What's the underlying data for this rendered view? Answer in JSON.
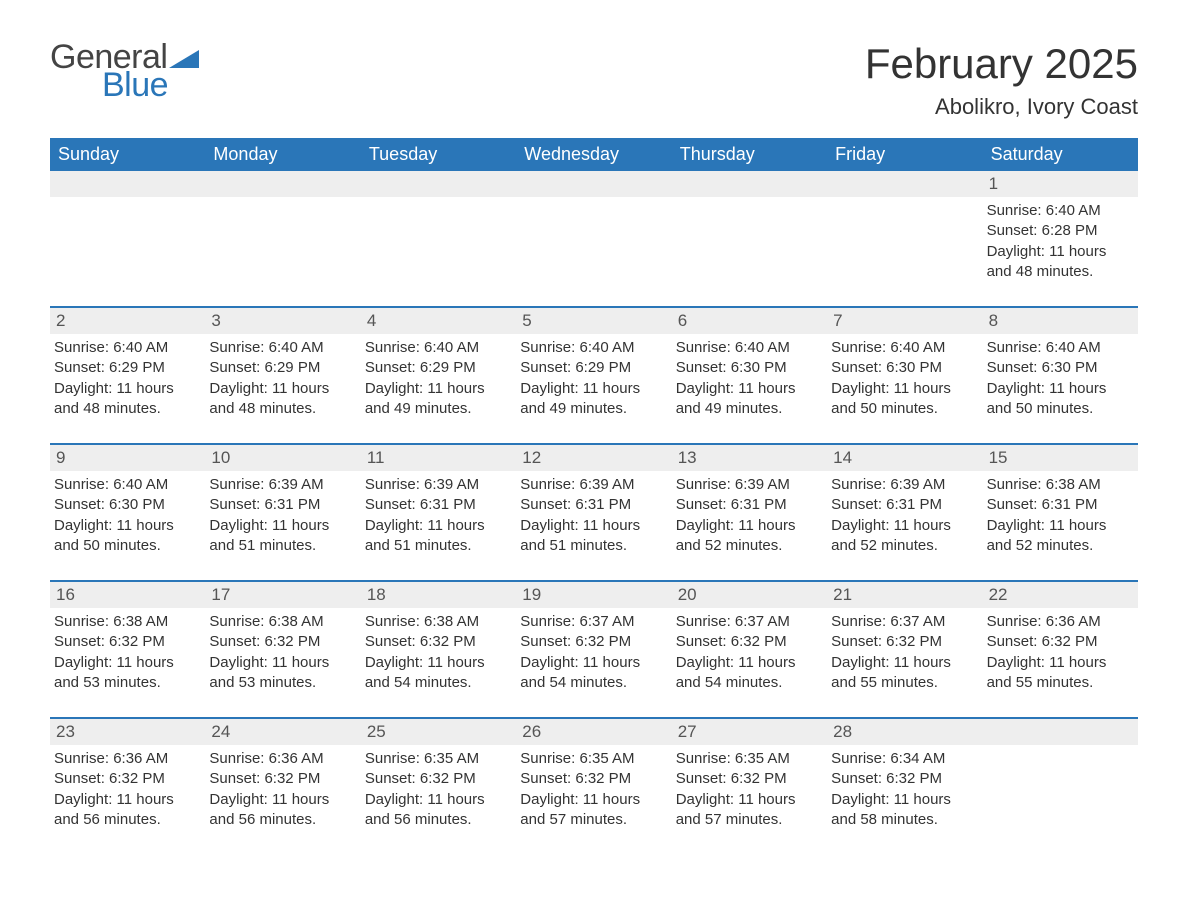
{
  "brand": {
    "word1": "General",
    "word2": "Blue",
    "accent_color": "#2a76b8"
  },
  "title": "February 2025",
  "location": "Abolikro, Ivory Coast",
  "weekdays": [
    "Sunday",
    "Monday",
    "Tuesday",
    "Wednesday",
    "Thursday",
    "Friday",
    "Saturday"
  ],
  "colors": {
    "header_bg": "#2a76b8",
    "header_text": "#ffffff",
    "body_text": "#333333",
    "daynum_bg": "#eeeeee",
    "row_border": "#2a76b8",
    "page_bg": "#ffffff"
  },
  "typography": {
    "title_fontsize": 42,
    "location_fontsize": 22,
    "weekday_fontsize": 18,
    "daynum_fontsize": 17,
    "body_fontsize": 15,
    "font_family": "Arial"
  },
  "layout": {
    "columns": 7,
    "rows": 5,
    "start_weekday_index": 6
  },
  "days": [
    {
      "n": 1,
      "sunrise": "6:40 AM",
      "sunset": "6:28 PM",
      "daylight": "11 hours and 48 minutes."
    },
    {
      "n": 2,
      "sunrise": "6:40 AM",
      "sunset": "6:29 PM",
      "daylight": "11 hours and 48 minutes."
    },
    {
      "n": 3,
      "sunrise": "6:40 AM",
      "sunset": "6:29 PM",
      "daylight": "11 hours and 48 minutes."
    },
    {
      "n": 4,
      "sunrise": "6:40 AM",
      "sunset": "6:29 PM",
      "daylight": "11 hours and 49 minutes."
    },
    {
      "n": 5,
      "sunrise": "6:40 AM",
      "sunset": "6:29 PM",
      "daylight": "11 hours and 49 minutes."
    },
    {
      "n": 6,
      "sunrise": "6:40 AM",
      "sunset": "6:30 PM",
      "daylight": "11 hours and 49 minutes."
    },
    {
      "n": 7,
      "sunrise": "6:40 AM",
      "sunset": "6:30 PM",
      "daylight": "11 hours and 50 minutes."
    },
    {
      "n": 8,
      "sunrise": "6:40 AM",
      "sunset": "6:30 PM",
      "daylight": "11 hours and 50 minutes."
    },
    {
      "n": 9,
      "sunrise": "6:40 AM",
      "sunset": "6:30 PM",
      "daylight": "11 hours and 50 minutes."
    },
    {
      "n": 10,
      "sunrise": "6:39 AM",
      "sunset": "6:31 PM",
      "daylight": "11 hours and 51 minutes."
    },
    {
      "n": 11,
      "sunrise": "6:39 AM",
      "sunset": "6:31 PM",
      "daylight": "11 hours and 51 minutes."
    },
    {
      "n": 12,
      "sunrise": "6:39 AM",
      "sunset": "6:31 PM",
      "daylight": "11 hours and 51 minutes."
    },
    {
      "n": 13,
      "sunrise": "6:39 AM",
      "sunset": "6:31 PM",
      "daylight": "11 hours and 52 minutes."
    },
    {
      "n": 14,
      "sunrise": "6:39 AM",
      "sunset": "6:31 PM",
      "daylight": "11 hours and 52 minutes."
    },
    {
      "n": 15,
      "sunrise": "6:38 AM",
      "sunset": "6:31 PM",
      "daylight": "11 hours and 52 minutes."
    },
    {
      "n": 16,
      "sunrise": "6:38 AM",
      "sunset": "6:32 PM",
      "daylight": "11 hours and 53 minutes."
    },
    {
      "n": 17,
      "sunrise": "6:38 AM",
      "sunset": "6:32 PM",
      "daylight": "11 hours and 53 minutes."
    },
    {
      "n": 18,
      "sunrise": "6:38 AM",
      "sunset": "6:32 PM",
      "daylight": "11 hours and 54 minutes."
    },
    {
      "n": 19,
      "sunrise": "6:37 AM",
      "sunset": "6:32 PM",
      "daylight": "11 hours and 54 minutes."
    },
    {
      "n": 20,
      "sunrise": "6:37 AM",
      "sunset": "6:32 PM",
      "daylight": "11 hours and 54 minutes."
    },
    {
      "n": 21,
      "sunrise": "6:37 AM",
      "sunset": "6:32 PM",
      "daylight": "11 hours and 55 minutes."
    },
    {
      "n": 22,
      "sunrise": "6:36 AM",
      "sunset": "6:32 PM",
      "daylight": "11 hours and 55 minutes."
    },
    {
      "n": 23,
      "sunrise": "6:36 AM",
      "sunset": "6:32 PM",
      "daylight": "11 hours and 56 minutes."
    },
    {
      "n": 24,
      "sunrise": "6:36 AM",
      "sunset": "6:32 PM",
      "daylight": "11 hours and 56 minutes."
    },
    {
      "n": 25,
      "sunrise": "6:35 AM",
      "sunset": "6:32 PM",
      "daylight": "11 hours and 56 minutes."
    },
    {
      "n": 26,
      "sunrise": "6:35 AM",
      "sunset": "6:32 PM",
      "daylight": "11 hours and 57 minutes."
    },
    {
      "n": 27,
      "sunrise": "6:35 AM",
      "sunset": "6:32 PM",
      "daylight": "11 hours and 57 minutes."
    },
    {
      "n": 28,
      "sunrise": "6:34 AM",
      "sunset": "6:32 PM",
      "daylight": "11 hours and 58 minutes."
    }
  ],
  "labels": {
    "sunrise": "Sunrise:",
    "sunset": "Sunset:",
    "daylight": "Daylight:"
  }
}
